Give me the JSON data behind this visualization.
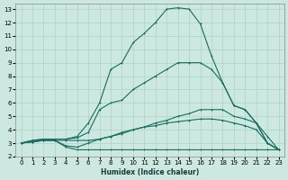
{
  "xlabel": "Humidex (Indice chaleur)",
  "bg_color": "#cce8e0",
  "line_color": "#1a6b60",
  "grid_color": "#b0d8cc",
  "xlim": [
    -0.5,
    23.5
  ],
  "ylim": [
    2,
    13.4
  ],
  "xticks": [
    0,
    1,
    2,
    3,
    4,
    5,
    6,
    7,
    8,
    9,
    10,
    11,
    12,
    13,
    14,
    15,
    16,
    17,
    18,
    19,
    20,
    21,
    22,
    23
  ],
  "yticks": [
    2,
    3,
    4,
    5,
    6,
    7,
    8,
    9,
    10,
    11,
    12,
    13
  ],
  "curves": [
    {
      "x": [
        0,
        1,
        2,
        3,
        4,
        5,
        6,
        7,
        8,
        9,
        10,
        11,
        12,
        13,
        14,
        15,
        16,
        17,
        18,
        19,
        20,
        21,
        22,
        23
      ],
      "y": [
        3.0,
        3.2,
        3.3,
        3.3,
        3.3,
        3.5,
        4.5,
        6.0,
        8.5,
        9.0,
        10.5,
        11.2,
        12.0,
        13.0,
        13.1,
        13.0,
        11.9,
        9.5,
        7.5,
        5.8,
        5.5,
        4.5,
        3.0,
        2.5
      ]
    },
    {
      "x": [
        0,
        1,
        2,
        3,
        4,
        5,
        6,
        7,
        8,
        9,
        10,
        11,
        12,
        13,
        14,
        15,
        16,
        17,
        18,
        19,
        20,
        21,
        22,
        23
      ],
      "y": [
        3.0,
        3.2,
        3.3,
        3.3,
        3.3,
        3.4,
        3.8,
        5.5,
        6.0,
        6.2,
        7.0,
        7.5,
        8.0,
        8.5,
        9.0,
        9.0,
        9.0,
        8.5,
        7.5,
        5.8,
        5.5,
        4.5,
        3.0,
        2.5
      ]
    },
    {
      "x": [
        0,
        1,
        2,
        3,
        4,
        5,
        6,
        7,
        8,
        9,
        10,
        11,
        12,
        13,
        14,
        15,
        16,
        17,
        18,
        19,
        20,
        21,
        22,
        23
      ],
      "y": [
        3.0,
        3.1,
        3.2,
        3.2,
        3.2,
        3.2,
        3.2,
        3.3,
        3.5,
        3.8,
        4.0,
        4.2,
        4.5,
        4.7,
        5.0,
        5.2,
        5.5,
        5.5,
        5.5,
        5.0,
        4.8,
        4.5,
        3.5,
        2.5
      ]
    },
    {
      "x": [
        0,
        1,
        2,
        3,
        4,
        5,
        6,
        7,
        8,
        9,
        10,
        11,
        12,
        13,
        14,
        15,
        16,
        17,
        18,
        19,
        20,
        21,
        22,
        23
      ],
      "y": [
        3.0,
        3.1,
        3.2,
        3.2,
        2.8,
        2.7,
        3.0,
        3.3,
        3.5,
        3.7,
        4.0,
        4.2,
        4.3,
        4.5,
        4.6,
        4.7,
        4.8,
        4.8,
        4.7,
        4.5,
        4.3,
        4.0,
        3.0,
        2.5
      ]
    },
    {
      "x": [
        0,
        1,
        2,
        3,
        4,
        5,
        6,
        7,
        8,
        9,
        10,
        11,
        12,
        13,
        14,
        15,
        16,
        17,
        18,
        19,
        20,
        21,
        22,
        23
      ],
      "y": [
        3.0,
        3.1,
        3.2,
        3.2,
        2.7,
        2.5,
        2.5,
        2.5,
        2.5,
        2.5,
        2.5,
        2.5,
        2.5,
        2.5,
        2.5,
        2.5,
        2.5,
        2.5,
        2.5,
        2.5,
        2.5,
        2.5,
        2.5,
        2.5
      ]
    }
  ]
}
